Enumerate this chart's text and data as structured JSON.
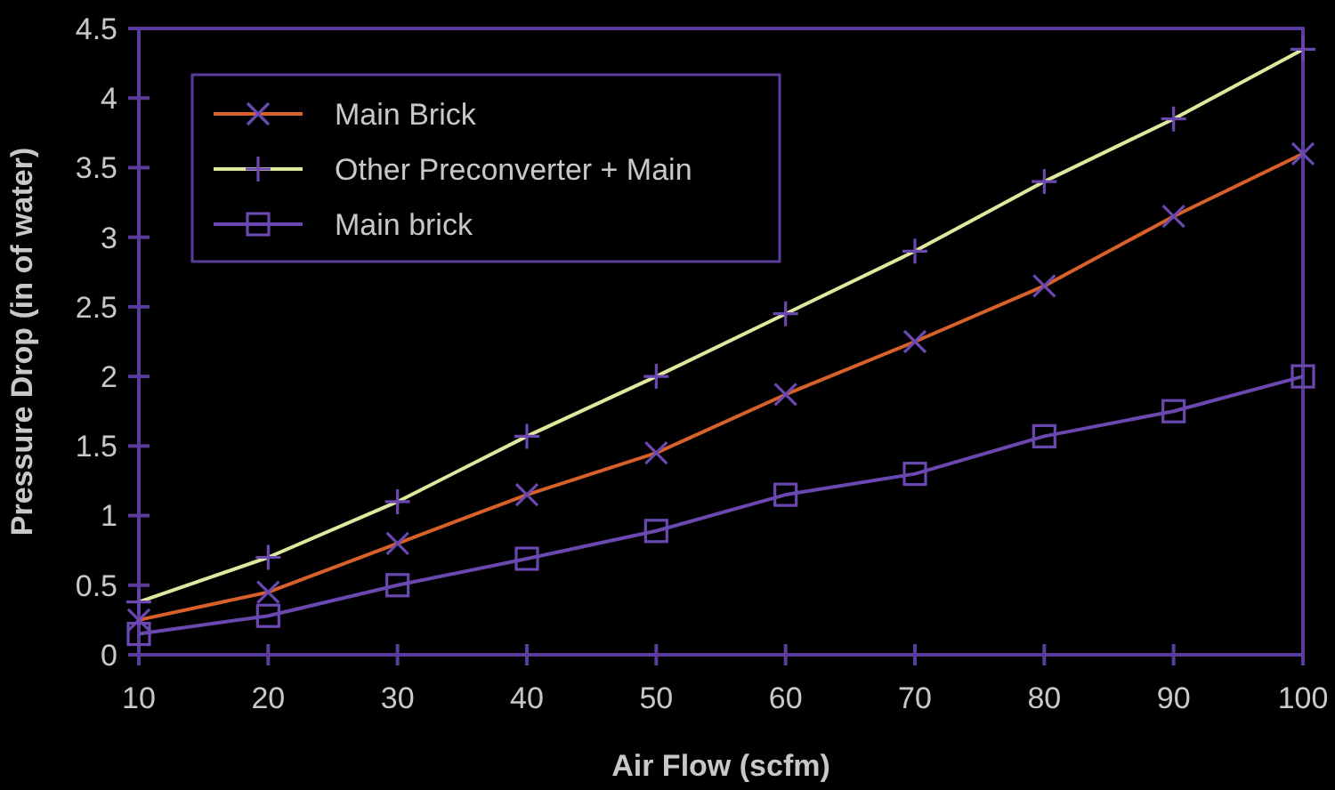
{
  "chart_data": {
    "type": "line",
    "xlabel": "Air Flow (scfm)",
    "ylabel": "Pressure Drop (in of water)",
    "x": [
      10,
      20,
      30,
      40,
      50,
      60,
      70,
      80,
      90,
      100
    ],
    "xlim": [
      10,
      100
    ],
    "xticks": [
      10,
      20,
      30,
      40,
      50,
      60,
      70,
      80,
      90,
      100
    ],
    "ylim": [
      0,
      4.5
    ],
    "yticks": [
      0,
      0.5,
      1,
      1.5,
      2,
      2.5,
      3,
      3.5,
      4,
      4.5
    ],
    "series": [
      {
        "name": "Main Brick",
        "color": "#d8602a",
        "marker": "cross",
        "values": [
          0.25,
          0.45,
          0.8,
          1.15,
          1.45,
          1.87,
          2.25,
          2.65,
          3.15,
          3.6
        ]
      },
      {
        "name": "Other Preconverter + Main",
        "color": "#e0e8a0",
        "marker": "plus",
        "values": [
          0.38,
          0.7,
          1.1,
          1.57,
          2.0,
          2.45,
          2.9,
          3.4,
          3.85,
          4.35
        ]
      },
      {
        "name": "Main brick",
        "color": "#6a48b0",
        "marker": "square",
        "values": [
          0.15,
          0.28,
          0.5,
          0.69,
          0.89,
          1.15,
          1.3,
          1.57,
          1.75,
          2.0
        ]
      }
    ],
    "legend": "top left",
    "grid": false,
    "line_style": "solid"
  }
}
